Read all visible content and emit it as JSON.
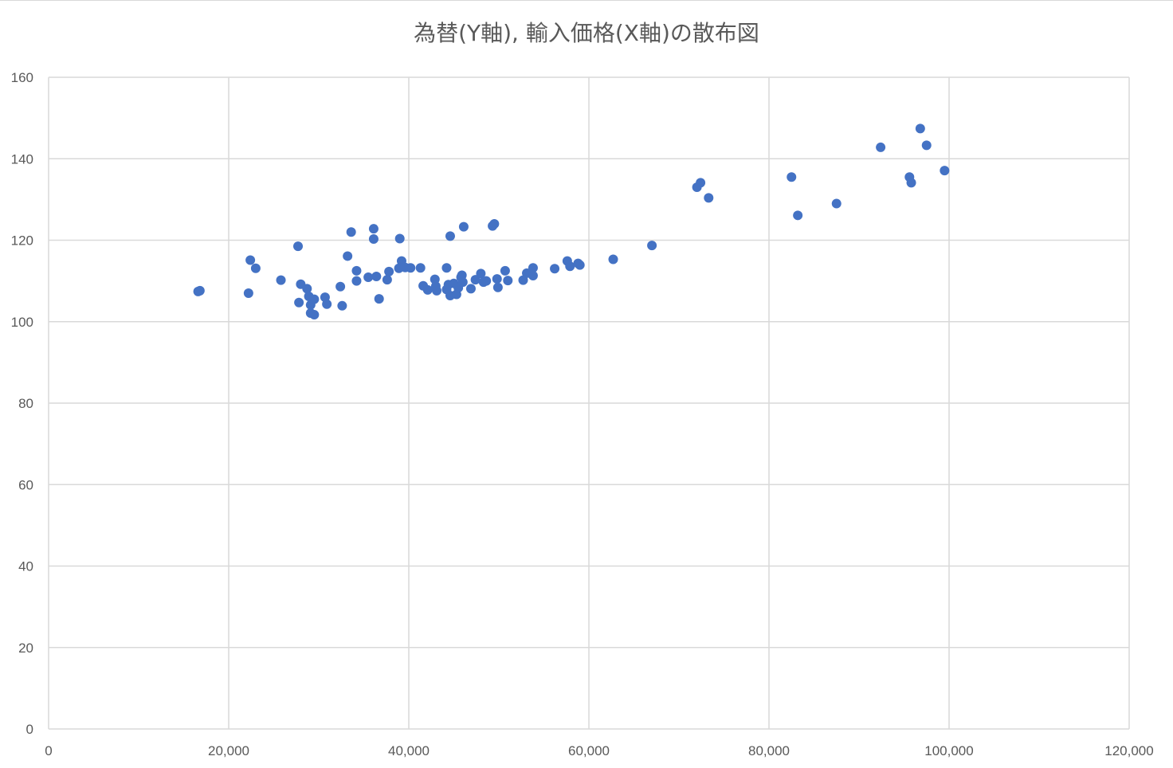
{
  "chart_data": {
    "type": "scatter",
    "title": "為替(Y軸), 輸入価格(X軸)の散布図",
    "xlim": [
      0,
      120000
    ],
    "ylim": [
      0,
      160
    ],
    "x_ticks": [
      0,
      20000,
      40000,
      60000,
      80000,
      100000,
      120000
    ],
    "x_tick_labels": [
      "0",
      "20,000",
      "40,000",
      "60,000",
      "80,000",
      "100,000",
      "120,000"
    ],
    "y_ticks": [
      0,
      20,
      40,
      60,
      80,
      100,
      120,
      140,
      160
    ],
    "y_tick_labels": [
      "0",
      "20",
      "40",
      "60",
      "80",
      "100",
      "120",
      "140",
      "160"
    ],
    "grid": true,
    "legend": "none",
    "marker_color": "#4472c4",
    "grid_color": "#d9d9d9",
    "points": [
      [
        16800,
        107.6
      ],
      [
        16600,
        107.4
      ],
      [
        22200,
        107.0
      ],
      [
        22400,
        115.1
      ],
      [
        23000,
        113.1
      ],
      [
        25800,
        110.2
      ],
      [
        27700,
        118.5
      ],
      [
        27800,
        104.7
      ],
      [
        28000,
        109.2
      ],
      [
        28700,
        108.1
      ],
      [
        28900,
        106.2
      ],
      [
        29100,
        104.1
      ],
      [
        29100,
        102.1
      ],
      [
        29500,
        101.7
      ],
      [
        29500,
        105.5
      ],
      [
        30700,
        106.0
      ],
      [
        30900,
        104.3
      ],
      [
        32400,
        108.6
      ],
      [
        32600,
        103.9
      ],
      [
        33200,
        116.1
      ],
      [
        33600,
        122.0
      ],
      [
        34200,
        112.5
      ],
      [
        34200,
        110.0
      ],
      [
        35500,
        110.9
      ],
      [
        36100,
        122.8
      ],
      [
        36100,
        120.3
      ],
      [
        36400,
        111.1
      ],
      [
        36700,
        105.6
      ],
      [
        37600,
        110.3
      ],
      [
        37800,
        112.3
      ],
      [
        38900,
        113.1
      ],
      [
        39000,
        120.4
      ],
      [
        39200,
        114.9
      ],
      [
        39600,
        113.3
      ],
      [
        40200,
        113.2
      ],
      [
        41300,
        113.2
      ],
      [
        41600,
        108.8
      ],
      [
        42100,
        107.8
      ],
      [
        42900,
        110.4
      ],
      [
        43000,
        108.7
      ],
      [
        43100,
        107.6
      ],
      [
        44200,
        113.2
      ],
      [
        44200,
        107.9
      ],
      [
        44400,
        109.1
      ],
      [
        44600,
        121.0
      ],
      [
        44600,
        106.4
      ],
      [
        45000,
        109.4
      ],
      [
        45300,
        106.7
      ],
      [
        45500,
        108.3
      ],
      [
        45800,
        110.9
      ],
      [
        45900,
        111.4
      ],
      [
        46000,
        109.7
      ],
      [
        46100,
        123.3
      ],
      [
        46900,
        108.1
      ],
      [
        47400,
        110.3
      ],
      [
        48000,
        111.8
      ],
      [
        48300,
        109.7
      ],
      [
        48600,
        110.0
      ],
      [
        49300,
        123.5
      ],
      [
        49500,
        124.0
      ],
      [
        49800,
        110.5
      ],
      [
        49900,
        108.4
      ],
      [
        50700,
        112.5
      ],
      [
        51000,
        110.1
      ],
      [
        52700,
        110.2
      ],
      [
        53100,
        111.9
      ],
      [
        53800,
        113.2
      ],
      [
        53800,
        111.3
      ],
      [
        56200,
        113.0
      ],
      [
        57600,
        114.9
      ],
      [
        57900,
        113.6
      ],
      [
        58800,
        114.3
      ],
      [
        59000,
        113.9
      ],
      [
        62700,
        115.3
      ],
      [
        67000,
        118.7
      ],
      [
        72000,
        133.0
      ],
      [
        72400,
        134.1
      ],
      [
        73300,
        130.4
      ],
      [
        82500,
        135.5
      ],
      [
        83200,
        126.1
      ],
      [
        87500,
        129.0
      ],
      [
        92400,
        142.8
      ],
      [
        95600,
        135.5
      ],
      [
        95800,
        134.1
      ],
      [
        96800,
        147.4
      ],
      [
        97500,
        143.3
      ],
      [
        99500,
        137.1
      ]
    ]
  }
}
